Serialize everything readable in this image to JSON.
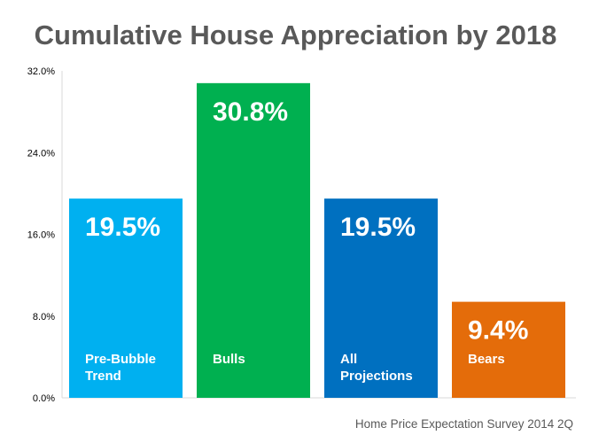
{
  "chart_data": {
    "type": "bar",
    "title": "Cumulative House Appreciation by 2018",
    "categories": [
      "Pre-Bubble Trend",
      "Bulls",
      "All Projections",
      "Bears"
    ],
    "category_label_lines": [
      [
        "Pre-Bubble",
        "Trend"
      ],
      [
        "Bulls"
      ],
      [
        "All",
        "Projections"
      ],
      [
        "Bears"
      ]
    ],
    "values": [
      19.5,
      30.8,
      19.5,
      9.4
    ],
    "value_labels": [
      "19.5%",
      "30.8%",
      "19.5%",
      "9.4%"
    ],
    "colors": [
      "#00B0F0",
      "#00B050",
      "#0070C0",
      "#E46C0A"
    ],
    "ylim": [
      0,
      32
    ],
    "yticks": [
      0,
      8,
      16,
      24,
      32
    ],
    "ytick_labels": [
      "0.0%",
      "8.0%",
      "16.0%",
      "24.0%",
      "32.0%"
    ],
    "grid": false,
    "legend": "none",
    "source": "Home Price Expectation Survey 2014 2Q"
  }
}
